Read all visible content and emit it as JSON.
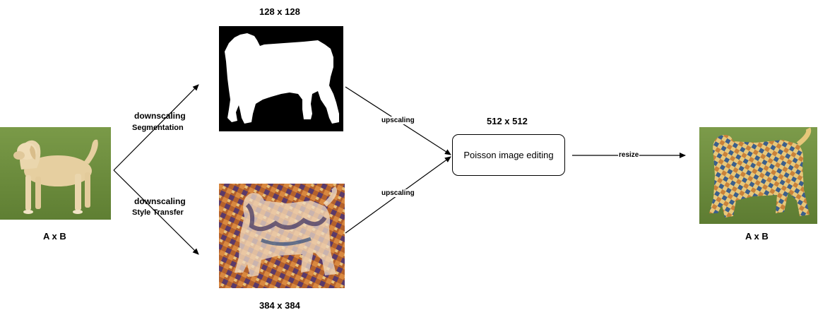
{
  "input": {
    "caption": "A x B"
  },
  "output": {
    "caption": "A x B"
  },
  "mask": {
    "size_label": "128 x 128"
  },
  "style": {
    "size_label": "384 x 384"
  },
  "poisson": {
    "size_label": "512 x 512",
    "label": "Poisson image editing"
  },
  "edges": {
    "to_mask_main": "downscaling",
    "to_mask_sub": "Segmentation",
    "to_style_main": "downscaling",
    "to_style_sub": "Style Transfer",
    "mask_upscaling": "upscaling",
    "style_upscaling": "upscaling",
    "resize": "resize"
  },
  "colors": {
    "grass": "#6e8f3c",
    "dog": "#e8d3a8",
    "mask_bg": "#000000",
    "mask_fg": "#ffffff"
  }
}
